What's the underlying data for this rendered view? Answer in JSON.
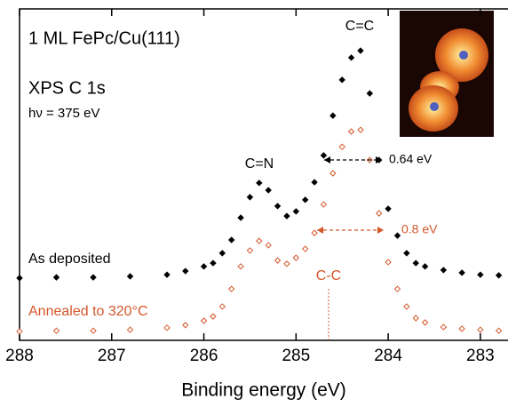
{
  "chart_data": {
    "type": "scatter",
    "x_label": "Binding energy (eV)",
    "xlim": [
      288,
      282.7
    ],
    "xticks": [
      288,
      287,
      286,
      285,
      284,
      283
    ],
    "ylim": [
      0,
      100
    ],
    "x": [
      288.0,
      287.6,
      287.2,
      286.8,
      286.4,
      286.2,
      286.0,
      285.9,
      285.8,
      285.7,
      285.6,
      285.5,
      285.4,
      285.3,
      285.2,
      285.1,
      285.0,
      284.9,
      284.8,
      284.7,
      284.6,
      284.5,
      284.4,
      284.3,
      284.2,
      284.1,
      284.0,
      283.9,
      283.8,
      283.7,
      283.6,
      283.4,
      283.2,
      283.0,
      282.8
    ],
    "series": [
      {
        "name": "As deposited",
        "color": "#000000",
        "marker": "filled",
        "values": [
          18.8,
          19.0,
          19.0,
          19.3,
          19.8,
          20.9,
          22.3,
          23.3,
          26.3,
          30.3,
          37.0,
          43.2,
          47.5,
          45.3,
          40.5,
          37.5,
          38.9,
          42.4,
          47.7,
          55.8,
          67.8,
          78.6,
          85.3,
          87.4,
          74.5,
          54.4,
          39.7,
          31.6,
          26.3,
          23.3,
          22.3,
          21.2,
          20.4,
          19.8,
          19.6
        ]
      },
      {
        "name": "Annealed to 320°C",
        "color": "#d4572a",
        "marker": "open",
        "values": [
          2.7,
          2.9,
          2.9,
          3.2,
          3.8,
          4.6,
          5.9,
          7.2,
          10.2,
          15.5,
          22.3,
          27.1,
          30.0,
          28.7,
          24.1,
          23.1,
          24.9,
          27.6,
          32.4,
          41.0,
          50.4,
          58.4,
          63.0,
          63.5,
          54.4,
          38.3,
          23.6,
          15.5,
          10.2,
          6.7,
          5.4,
          4.0,
          3.5,
          3.2,
          2.9
        ]
      }
    ],
    "annotations": [
      "1 ML FePc/Cu(111)",
      "XPS C 1s",
      "hν = 375 eV",
      "C=C",
      "C=N",
      "0.64 eV",
      "0.8 eV",
      "C-C"
    ]
  }
}
